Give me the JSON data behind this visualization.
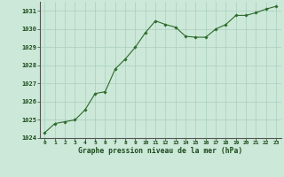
{
  "x": [
    0,
    1,
    2,
    3,
    4,
    5,
    6,
    7,
    8,
    9,
    10,
    11,
    12,
    13,
    14,
    15,
    16,
    17,
    18,
    19,
    20,
    21,
    22,
    23
  ],
  "y": [
    1024.3,
    1024.8,
    1024.9,
    1025.0,
    1025.55,
    1026.45,
    1026.55,
    1027.8,
    1028.35,
    1029.0,
    1029.8,
    1030.45,
    1030.25,
    1030.1,
    1029.6,
    1029.55,
    1029.55,
    1030.0,
    1030.25,
    1030.75,
    1030.75,
    1030.9,
    1031.1,
    1031.25
  ],
  "line_color": "#2d6a2d",
  "marker_color": "#2d6a2d",
  "bg_color": "#cce8d0",
  "grid_color": "#aacfb8",
  "border_color": "#888888",
  "xlabel": "Graphe pression niveau de la mer (hPa)",
  "xlabel_color": "#1a4a1a",
  "tick_color": "#1a4a1a",
  "ylim": [
    1024,
    1031.5
  ],
  "xlim": [
    -0.5,
    23.5
  ],
  "yticks": [
    1024,
    1025,
    1026,
    1027,
    1028,
    1029,
    1030,
    1031
  ],
  "xticks": [
    0,
    1,
    2,
    3,
    4,
    5,
    6,
    7,
    8,
    9,
    10,
    11,
    12,
    13,
    14,
    15,
    16,
    17,
    18,
    19,
    20,
    21,
    22,
    23
  ],
  "figsize": [
    3.2,
    2.0
  ],
  "dpi": 100
}
